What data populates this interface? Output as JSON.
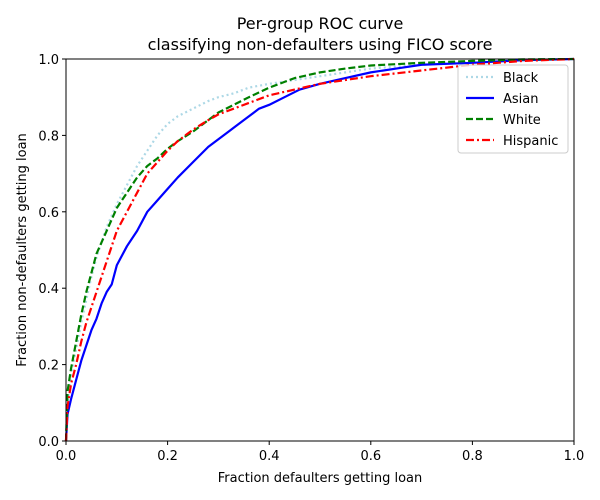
{
  "chart_data": {
    "type": "line",
    "title": "Per-group ROC curve",
    "subtitle": "classifying non-defaulters using FICO score",
    "xlabel": "Fraction defaulters getting loan",
    "ylabel": "Fraction non-defaulters getting loan",
    "xlim": [
      0.0,
      1.0
    ],
    "ylim": [
      0.0,
      1.0
    ],
    "xticks": [
      "0.0",
      "0.2",
      "0.4",
      "0.6",
      "0.8",
      "1.0"
    ],
    "yticks": [
      "0.0",
      "0.2",
      "0.4",
      "0.6",
      "0.8",
      "1.0"
    ],
    "grid": false,
    "legend_position": "top-right",
    "series": [
      {
        "name": "Black",
        "color": "#add8e6",
        "style": "dotted",
        "x": [
          0,
          0.003,
          0.01,
          0.02,
          0.03,
          0.04,
          0.05,
          0.06,
          0.08,
          0.1,
          0.12,
          0.14,
          0.16,
          0.18,
          0.2,
          0.22,
          0.25,
          0.28,
          0.3,
          0.33,
          0.36,
          0.4,
          0.45,
          0.5,
          0.55,
          0.6,
          0.7,
          0.8,
          0.9,
          1.0
        ],
        "y": [
          0,
          0.1,
          0.17,
          0.24,
          0.31,
          0.37,
          0.43,
          0.48,
          0.56,
          0.62,
          0.67,
          0.72,
          0.76,
          0.8,
          0.83,
          0.85,
          0.87,
          0.89,
          0.9,
          0.91,
          0.925,
          0.935,
          0.945,
          0.955,
          0.965,
          0.975,
          0.985,
          0.993,
          0.998,
          1.0
        ]
      },
      {
        "name": "Asian",
        "color": "#0000ff",
        "style": "solid",
        "x": [
          0,
          0.003,
          0.01,
          0.02,
          0.03,
          0.04,
          0.05,
          0.06,
          0.07,
          0.08,
          0.09,
          0.1,
          0.12,
          0.14,
          0.16,
          0.18,
          0.2,
          0.22,
          0.25,
          0.28,
          0.3,
          0.32,
          0.35,
          0.38,
          0.4,
          0.43,
          0.46,
          0.5,
          0.55,
          0.6,
          0.65,
          0.7,
          0.8,
          0.9,
          1.0
        ],
        "y": [
          0,
          0.07,
          0.11,
          0.16,
          0.21,
          0.25,
          0.29,
          0.32,
          0.36,
          0.39,
          0.41,
          0.46,
          0.51,
          0.55,
          0.6,
          0.63,
          0.66,
          0.69,
          0.73,
          0.77,
          0.79,
          0.81,
          0.84,
          0.87,
          0.88,
          0.9,
          0.92,
          0.935,
          0.95,
          0.965,
          0.975,
          0.985,
          0.99,
          0.997,
          1.0
        ]
      },
      {
        "name": "White",
        "color": "#008000",
        "style": "dashed",
        "x": [
          0,
          0.003,
          0.01,
          0.02,
          0.03,
          0.04,
          0.05,
          0.06,
          0.08,
          0.1,
          0.12,
          0.14,
          0.16,
          0.18,
          0.2,
          0.22,
          0.25,
          0.28,
          0.3,
          0.33,
          0.36,
          0.4,
          0.45,
          0.5,
          0.55,
          0.6,
          0.7,
          0.8,
          0.9,
          1.0
        ],
        "y": [
          0,
          0.13,
          0.19,
          0.26,
          0.33,
          0.39,
          0.44,
          0.49,
          0.55,
          0.61,
          0.65,
          0.69,
          0.72,
          0.74,
          0.765,
          0.785,
          0.81,
          0.84,
          0.86,
          0.88,
          0.9,
          0.925,
          0.95,
          0.965,
          0.975,
          0.983,
          0.99,
          0.995,
          0.999,
          1.0
        ]
      },
      {
        "name": "Hispanic",
        "color": "#ff0000",
        "style": "dashdot",
        "x": [
          0,
          0.003,
          0.01,
          0.02,
          0.03,
          0.04,
          0.05,
          0.06,
          0.07,
          0.08,
          0.09,
          0.1,
          0.12,
          0.14,
          0.16,
          0.18,
          0.2,
          0.22,
          0.25,
          0.28,
          0.3,
          0.33,
          0.36,
          0.4,
          0.45,
          0.5,
          0.55,
          0.6,
          0.7,
          0.8,
          0.9,
          1.0
        ],
        "y": [
          0,
          0.09,
          0.15,
          0.2,
          0.26,
          0.31,
          0.35,
          0.39,
          0.43,
          0.47,
          0.51,
          0.55,
          0.6,
          0.65,
          0.7,
          0.73,
          0.76,
          0.785,
          0.815,
          0.84,
          0.855,
          0.87,
          0.885,
          0.905,
          0.92,
          0.935,
          0.945,
          0.955,
          0.97,
          0.985,
          0.995,
          1.0
        ]
      }
    ]
  }
}
